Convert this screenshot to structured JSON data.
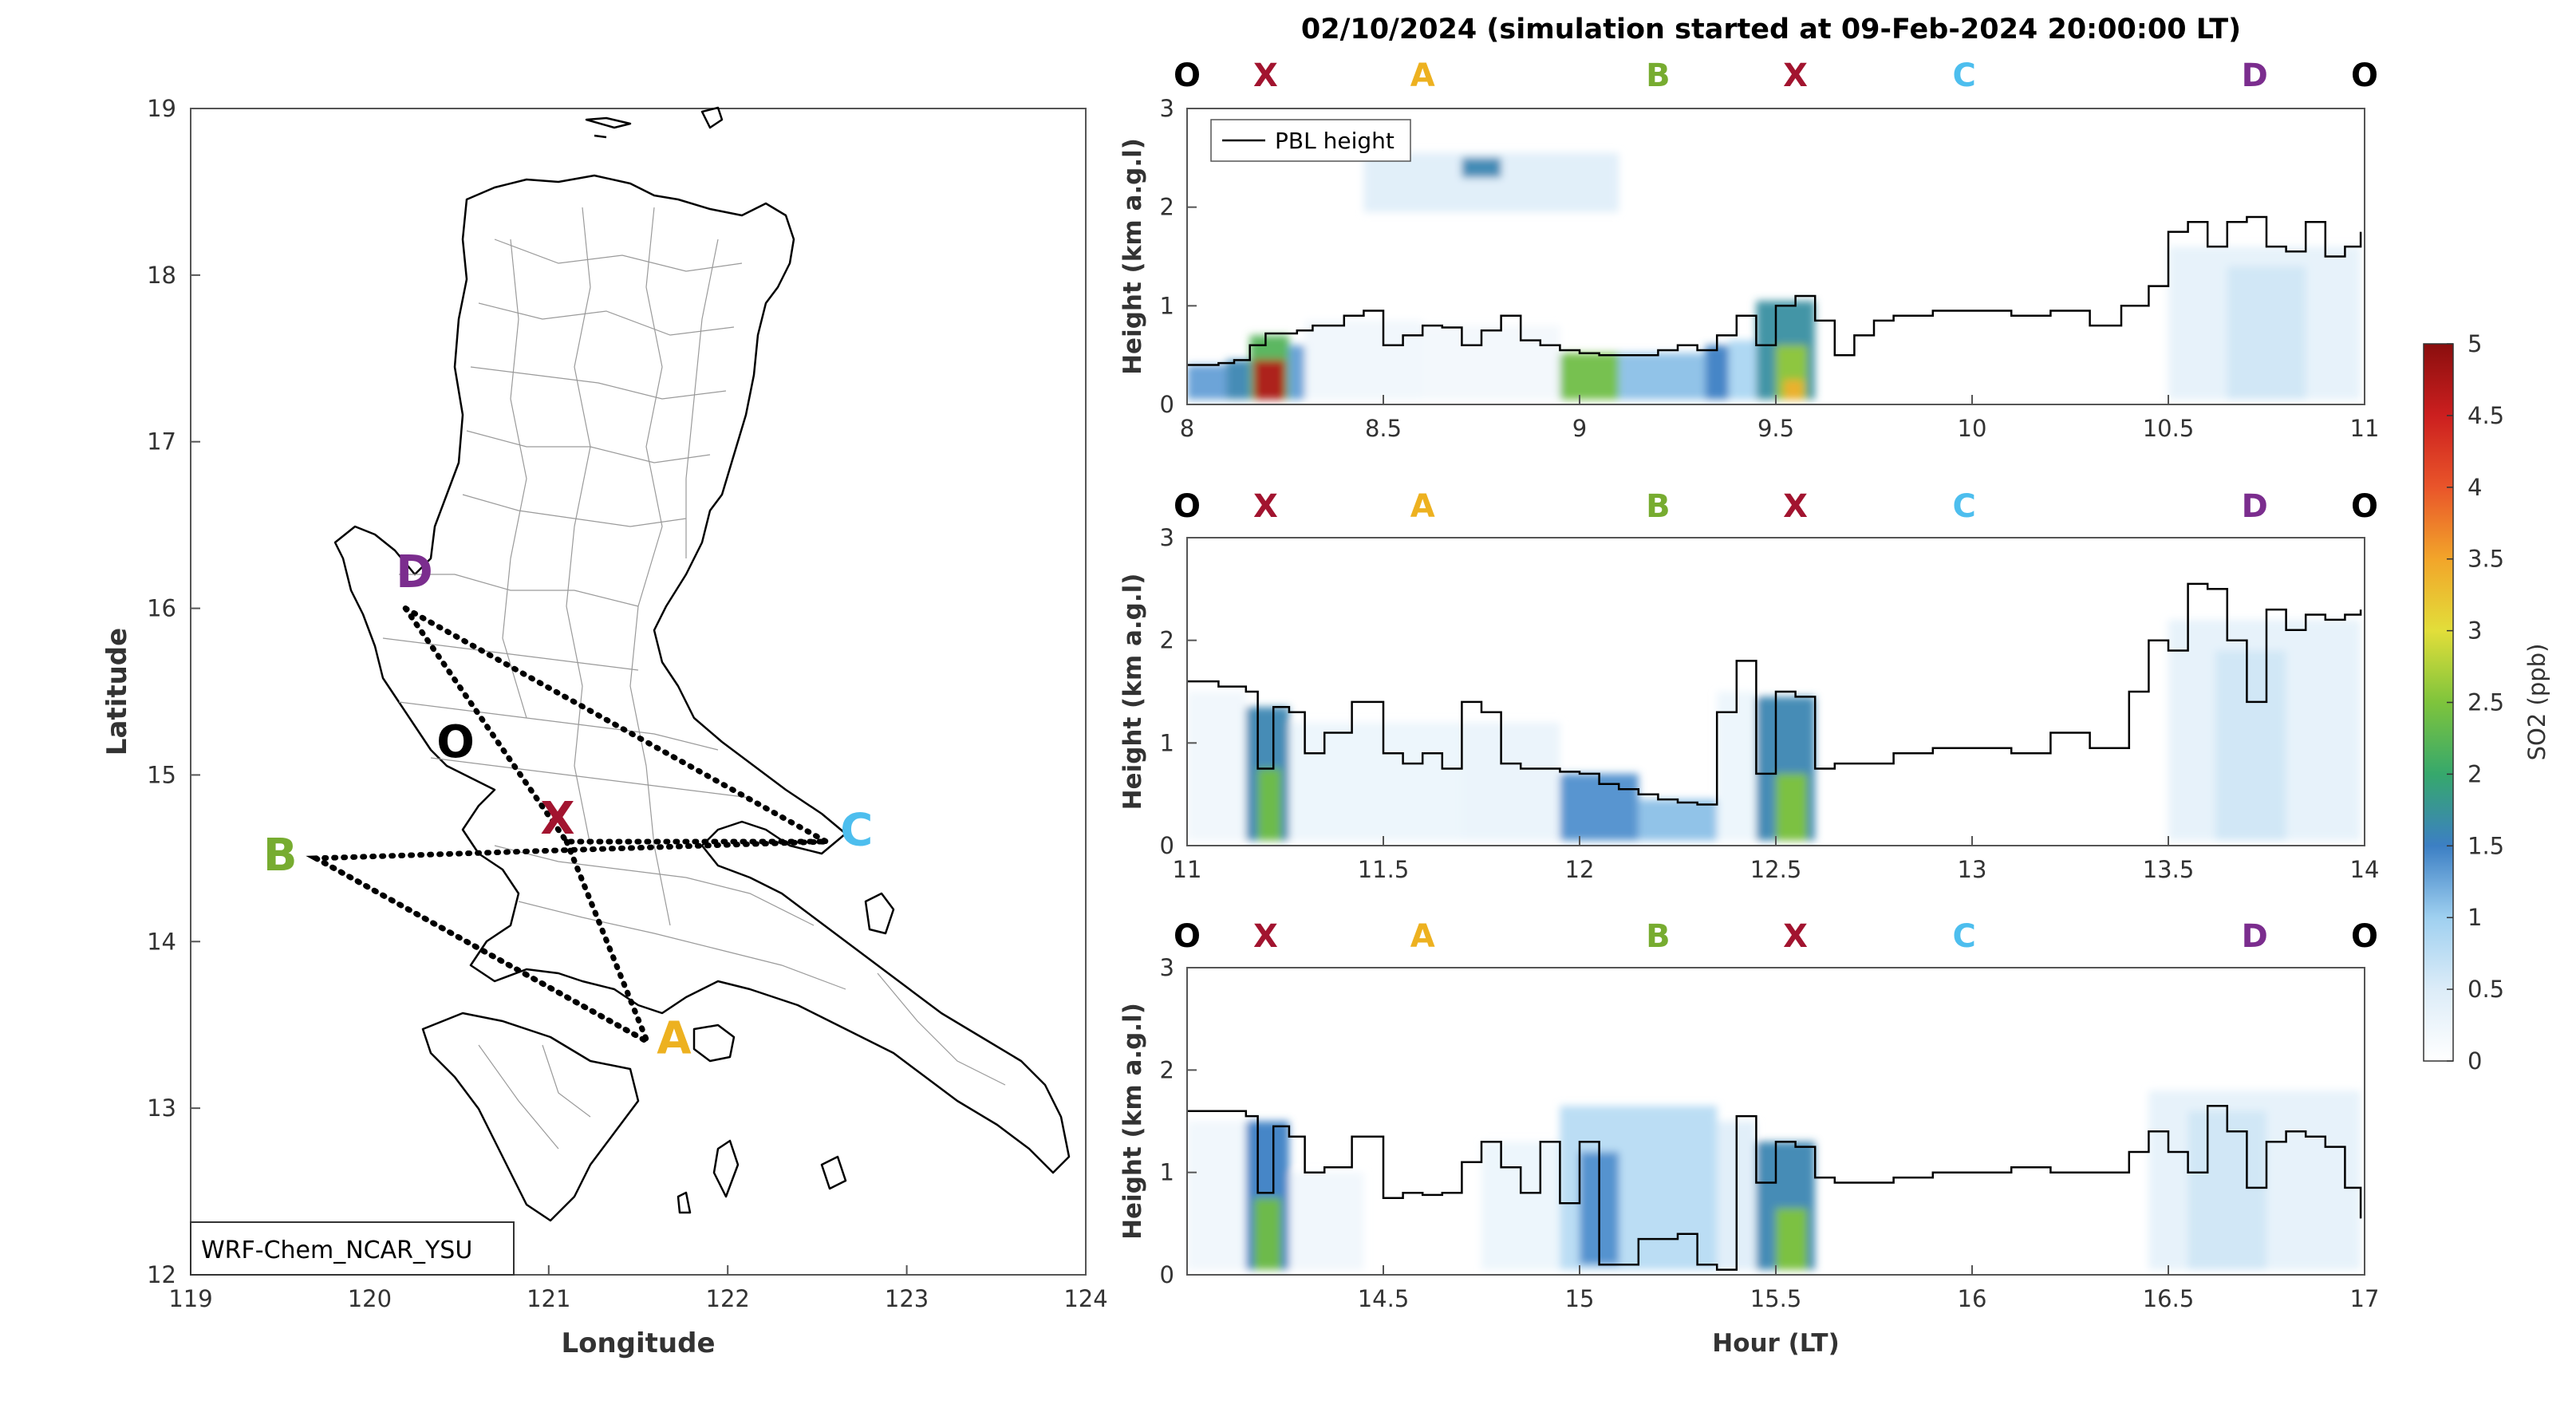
{
  "figure_title": "02/10/2024 (simulation started at 09-Feb-2024 20:00:00 LT)",
  "map": {
    "xlabel": "Longitude",
    "ylabel": "Latitude",
    "xticks": [
      "119",
      "120",
      "121",
      "122",
      "123",
      "124"
    ],
    "yticks": [
      "12",
      "13",
      "14",
      "15",
      "16",
      "17",
      "18",
      "19"
    ],
    "model_label": "WRF-Chem_NCAR_YSU",
    "markers": [
      {
        "id": "D",
        "label": "D",
        "lon": 120.25,
        "lat": 16.2,
        "color": "#7b2d8e"
      },
      {
        "id": "O",
        "label": "O",
        "lon": 120.48,
        "lat": 15.18,
        "color": "#000000"
      },
      {
        "id": "X",
        "label": "X",
        "lon": 121.05,
        "lat": 14.72,
        "color": "#a2142f"
      },
      {
        "id": "B",
        "label": "B",
        "lon": 119.5,
        "lat": 14.5,
        "color": "#77ac30"
      },
      {
        "id": "C",
        "label": "C",
        "lon": 122.72,
        "lat": 14.65,
        "color": "#4dbeee"
      },
      {
        "id": "A",
        "label": "A",
        "lon": 121.7,
        "lat": 13.4,
        "color": "#edb120"
      }
    ],
    "route_points": [
      {
        "lon": 120.2,
        "lat": 16.0
      },
      {
        "lon": 121.1,
        "lat": 14.6
      },
      {
        "lon": 122.55,
        "lat": 14.6
      },
      {
        "lon": 119.7,
        "lat": 14.5
      },
      {
        "lon": 121.55,
        "lat": 13.4
      }
    ]
  },
  "colorbar": {
    "label": "SO2 (ppb)",
    "ticks": [
      "0",
      "0.5",
      "1",
      "1.5",
      "2",
      "2.5",
      "3",
      "3.5",
      "4",
      "4.5",
      "5"
    ],
    "min": 0,
    "max": 5
  },
  "chart_data": [
    {
      "type": "heatmap",
      "xlim": [
        8,
        11
      ],
      "ylim": [
        0,
        3
      ],
      "xticks": [
        "8",
        "8.5",
        "9",
        "9.5",
        "10",
        "10.5",
        "11"
      ],
      "yticks": [
        "0",
        "1",
        "2",
        "3"
      ],
      "ylabel": "Height (km a.g.l)",
      "xlabel": "",
      "legend": [
        "PBL height"
      ],
      "legend_position": "top-left",
      "site_labels": [
        {
          "label": "O",
          "x": 8.0,
          "color": "#000000"
        },
        {
          "label": "X",
          "x": 8.2,
          "color": "#a2142f"
        },
        {
          "label": "A",
          "x": 8.6,
          "color": "#edb120"
        },
        {
          "label": "B",
          "x": 9.2,
          "color": "#77ac30"
        },
        {
          "label": "X",
          "x": 9.55,
          "color": "#a2142f"
        },
        {
          "label": "C",
          "x": 9.98,
          "color": "#4dbeee"
        },
        {
          "label": "D",
          "x": 10.72,
          "color": "#7b2d8e"
        },
        {
          "label": "O",
          "x": 11.0,
          "color": "#000000"
        }
      ],
      "series": [
        {
          "name": "PBL height",
          "x": [
            8.0,
            8.08,
            8.12,
            8.16,
            8.2,
            8.24,
            8.28,
            8.32,
            8.4,
            8.45,
            8.5,
            8.55,
            8.6,
            8.65,
            8.7,
            8.75,
            8.8,
            8.85,
            8.9,
            8.95,
            9.0,
            9.05,
            9.1,
            9.15,
            9.2,
            9.25,
            9.3,
            9.35,
            9.4,
            9.45,
            9.5,
            9.55,
            9.6,
            9.65,
            9.7,
            9.75,
            9.8,
            9.9,
            10.0,
            10.1,
            10.2,
            10.3,
            10.38,
            10.45,
            10.5,
            10.55,
            10.6,
            10.65,
            10.7,
            10.75,
            10.8,
            10.85,
            10.9,
            10.95,
            10.99
          ],
          "y": [
            0.4,
            0.42,
            0.45,
            0.6,
            0.72,
            0.72,
            0.75,
            0.8,
            0.9,
            0.95,
            0.6,
            0.7,
            0.8,
            0.78,
            0.6,
            0.75,
            0.9,
            0.65,
            0.6,
            0.55,
            0.52,
            0.5,
            0.5,
            0.5,
            0.55,
            0.6,
            0.55,
            0.7,
            0.9,
            0.6,
            1.0,
            1.1,
            0.85,
            0.5,
            0.7,
            0.85,
            0.9,
            0.95,
            0.95,
            0.9,
            0.95,
            0.8,
            1.0,
            1.2,
            1.75,
            1.85,
            1.6,
            1.85,
            1.9,
            1.6,
            1.55,
            1.85,
            1.5,
            1.6,
            1.75
          ]
        },
        {
          "name": "SO2",
          "blobs": [
            {
              "x0": 8.0,
              "x1": 8.1,
              "y0": 0.05,
              "y1": 0.4,
              "v": 1.3
            },
            {
              "x0": 8.1,
              "x1": 8.16,
              "y0": 0.05,
              "y1": 0.45,
              "v": 1.6
            },
            {
              "x0": 8.16,
              "x1": 8.26,
              "y0": 0.05,
              "y1": 0.7,
              "v": 2.2
            },
            {
              "x0": 8.17,
              "x1": 8.25,
              "y0": 0.05,
              "y1": 0.45,
              "v": 4.7
            },
            {
              "x0": 8.26,
              "x1": 8.3,
              "y0": 0.05,
              "y1": 0.6,
              "v": 1.3
            },
            {
              "x0": 8.3,
              "x1": 8.6,
              "y0": 0.05,
              "y1": 0.85,
              "v": 0.25
            },
            {
              "x0": 8.6,
              "x1": 8.95,
              "y0": 0.05,
              "y1": 0.8,
              "v": 0.2
            },
            {
              "x0": 8.95,
              "x1": 9.1,
              "y0": 0.05,
              "y1": 0.52,
              "v": 2.4
            },
            {
              "x0": 9.1,
              "x1": 9.32,
              "y0": 0.05,
              "y1": 0.52,
              "v": 1.1
            },
            {
              "x0": 9.32,
              "x1": 9.38,
              "y0": 0.05,
              "y1": 0.6,
              "v": 1.5
            },
            {
              "x0": 9.38,
              "x1": 9.45,
              "y0": 0.05,
              "y1": 0.65,
              "v": 0.9
            },
            {
              "x0": 9.45,
              "x1": 9.6,
              "y0": 0.05,
              "y1": 1.05,
              "v": 1.7
            },
            {
              "x0": 9.5,
              "x1": 9.58,
              "y0": 0.05,
              "y1": 0.6,
              "v": 2.6
            },
            {
              "x0": 9.52,
              "x1": 9.57,
              "y0": 0.05,
              "y1": 0.25,
              "v": 3.4
            },
            {
              "x0": 8.45,
              "x1": 9.1,
              "y0": 1.95,
              "y1": 2.55,
              "v": 0.5
            },
            {
              "x0": 8.7,
              "x1": 8.8,
              "y0": 2.3,
              "y1": 2.5,
              "v": 1.6
            },
            {
              "x0": 10.5,
              "x1": 10.99,
              "y0": 0.05,
              "y1": 1.6,
              "v": 0.4
            },
            {
              "x0": 10.65,
              "x1": 10.85,
              "y0": 0.05,
              "y1": 1.4,
              "v": 0.6
            }
          ]
        }
      ]
    },
    {
      "type": "heatmap",
      "xlim": [
        11,
        14
      ],
      "ylim": [
        0,
        3
      ],
      "xticks": [
        "11",
        "11.5",
        "12",
        "12.5",
        "13",
        "13.5",
        "14"
      ],
      "yticks": [
        "0",
        "1",
        "2",
        "3"
      ],
      "ylabel": "Height (km a.g.l)",
      "xlabel": "",
      "site_labels": [
        {
          "label": "O",
          "x": 11.0,
          "color": "#000000"
        },
        {
          "label": "X",
          "x": 11.2,
          "color": "#a2142f"
        },
        {
          "label": "A",
          "x": 11.6,
          "color": "#edb120"
        },
        {
          "label": "B",
          "x": 12.2,
          "color": "#77ac30"
        },
        {
          "label": "X",
          "x": 12.55,
          "color": "#a2142f"
        },
        {
          "label": "C",
          "x": 12.98,
          "color": "#4dbeee"
        },
        {
          "label": "D",
          "x": 13.72,
          "color": "#7b2d8e"
        },
        {
          "label": "O",
          "x": 14.0,
          "color": "#000000"
        }
      ],
      "series": [
        {
          "name": "PBL height",
          "x": [
            11.0,
            11.08,
            11.15,
            11.18,
            11.22,
            11.26,
            11.3,
            11.35,
            11.42,
            11.5,
            11.55,
            11.6,
            11.65,
            11.7,
            11.75,
            11.8,
            11.85,
            11.9,
            11.95,
            12.0,
            12.05,
            12.1,
            12.15,
            12.2,
            12.25,
            12.3,
            12.35,
            12.4,
            12.45,
            12.5,
            12.55,
            12.6,
            12.65,
            12.7,
            12.8,
            12.9,
            13.0,
            13.1,
            13.2,
            13.3,
            13.4,
            13.45,
            13.5,
            13.55,
            13.6,
            13.65,
            13.7,
            13.75,
            13.8,
            13.85,
            13.9,
            13.95,
            13.99
          ],
          "y": [
            1.6,
            1.55,
            1.5,
            0.75,
            1.35,
            1.3,
            0.9,
            1.1,
            1.4,
            0.9,
            0.8,
            0.9,
            0.75,
            1.4,
            1.3,
            0.8,
            0.75,
            0.75,
            0.72,
            0.7,
            0.6,
            0.55,
            0.5,
            0.45,
            0.42,
            0.4,
            1.3,
            1.8,
            0.7,
            1.5,
            1.45,
            0.75,
            0.8,
            0.8,
            0.9,
            0.95,
            0.95,
            0.9,
            1.1,
            0.95,
            1.5,
            2.0,
            1.9,
            2.55,
            2.5,
            2.0,
            1.4,
            2.3,
            2.1,
            2.25,
            2.2,
            2.25,
            2.3
          ]
        },
        {
          "name": "SO2",
          "blobs": [
            {
              "x0": 11.0,
              "x1": 11.15,
              "y0": 0.05,
              "y1": 1.5,
              "v": 0.25
            },
            {
              "x0": 11.15,
              "x1": 11.26,
              "y0": 0.05,
              "y1": 1.35,
              "v": 1.6
            },
            {
              "x0": 11.18,
              "x1": 11.24,
              "y0": 0.05,
              "y1": 0.75,
              "v": 2.4
            },
            {
              "x0": 11.26,
              "x1": 11.7,
              "y0": 0.05,
              "y1": 1.2,
              "v": 0.3
            },
            {
              "x0": 11.7,
              "x1": 11.95,
              "y0": 0.05,
              "y1": 1.2,
              "v": 0.35
            },
            {
              "x0": 11.95,
              "x1": 12.15,
              "y0": 0.05,
              "y1": 0.7,
              "v": 1.4
            },
            {
              "x0": 12.15,
              "x1": 12.35,
              "y0": 0.05,
              "y1": 0.45,
              "v": 1.1
            },
            {
              "x0": 12.35,
              "x1": 12.45,
              "y0": 0.05,
              "y1": 1.5,
              "v": 0.3
            },
            {
              "x0": 12.45,
              "x1": 12.6,
              "y0": 0.05,
              "y1": 1.45,
              "v": 1.6
            },
            {
              "x0": 12.5,
              "x1": 12.58,
              "y0": 0.05,
              "y1": 0.7,
              "v": 2.5
            },
            {
              "x0": 13.5,
              "x1": 13.99,
              "y0": 0.05,
              "y1": 2.2,
              "v": 0.4
            },
            {
              "x0": 13.62,
              "x1": 13.8,
              "y0": 0.05,
              "y1": 1.9,
              "v": 0.6
            }
          ]
        }
      ]
    },
    {
      "type": "heatmap",
      "xlim": [
        14,
        17
      ],
      "ylim": [
        0,
        3
      ],
      "xticks": [
        "14.5",
        "15",
        "15.5",
        "16",
        "16.5",
        "17"
      ],
      "yticks": [
        "0",
        "1",
        "2",
        "3"
      ],
      "ylabel": "Height (km a.g.l)",
      "xlabel": "Hour (LT)",
      "site_labels": [
        {
          "label": "O",
          "x": 14.0,
          "color": "#000000"
        },
        {
          "label": "X",
          "x": 14.2,
          "color": "#a2142f"
        },
        {
          "label": "A",
          "x": 14.6,
          "color": "#edb120"
        },
        {
          "label": "B",
          "x": 15.2,
          "color": "#77ac30"
        },
        {
          "label": "X",
          "x": 15.55,
          "color": "#a2142f"
        },
        {
          "label": "C",
          "x": 15.98,
          "color": "#4dbeee"
        },
        {
          "label": "D",
          "x": 16.72,
          "color": "#7b2d8e"
        },
        {
          "label": "O",
          "x": 17.0,
          "color": "#000000"
        }
      ],
      "series": [
        {
          "name": "PBL height",
          "x": [
            14.0,
            14.08,
            14.15,
            14.18,
            14.22,
            14.26,
            14.3,
            14.35,
            14.42,
            14.5,
            14.55,
            14.6,
            14.65,
            14.7,
            14.75,
            14.8,
            14.85,
            14.9,
            14.95,
            15.0,
            15.05,
            15.1,
            15.15,
            15.2,
            15.25,
            15.3,
            15.35,
            15.4,
            15.45,
            15.5,
            15.55,
            15.6,
            15.65,
            15.7,
            15.8,
            15.9,
            16.0,
            16.1,
            16.2,
            16.3,
            16.4,
            16.45,
            16.5,
            16.55,
            16.6,
            16.65,
            16.7,
            16.75,
            16.8,
            16.85,
            16.9,
            16.95,
            16.99
          ],
          "y": [
            1.6,
            1.6,
            1.55,
            0.8,
            1.45,
            1.35,
            1.0,
            1.05,
            1.35,
            0.75,
            0.8,
            0.78,
            0.8,
            1.1,
            1.3,
            1.05,
            0.8,
            1.3,
            0.7,
            1.3,
            0.1,
            0.1,
            0.35,
            0.35,
            0.4,
            0.1,
            0.05,
            1.55,
            0.9,
            1.3,
            1.25,
            0.95,
            0.9,
            0.9,
            0.95,
            1.0,
            1.0,
            1.05,
            1.0,
            1.0,
            1.2,
            1.4,
            1.2,
            1.0,
            1.65,
            1.4,
            0.85,
            1.3,
            1.4,
            1.35,
            1.25,
            0.85,
            0.55
          ]
        },
        {
          "name": "SO2",
          "blobs": [
            {
              "x0": 14.0,
              "x1": 14.15,
              "y0": 0.05,
              "y1": 1.5,
              "v": 0.25
            },
            {
              "x0": 14.15,
              "x1": 14.26,
              "y0": 0.05,
              "y1": 1.5,
              "v": 1.5
            },
            {
              "x0": 14.17,
              "x1": 14.24,
              "y0": 0.05,
              "y1": 0.75,
              "v": 2.4
            },
            {
              "x0": 14.26,
              "x1": 14.45,
              "y0": 0.05,
              "y1": 1.0,
              "v": 0.25
            },
            {
              "x0": 14.75,
              "x1": 14.95,
              "y0": 0.05,
              "y1": 1.3,
              "v": 0.3
            },
            {
              "x0": 14.95,
              "x1": 15.35,
              "y0": 0.05,
              "y1": 1.65,
              "v": 0.8
            },
            {
              "x0": 15.0,
              "x1": 15.1,
              "y0": 0.1,
              "y1": 1.2,
              "v": 1.4
            },
            {
              "x0": 15.35,
              "x1": 15.45,
              "y0": 0.05,
              "y1": 1.5,
              "v": 0.5
            },
            {
              "x0": 15.45,
              "x1": 15.6,
              "y0": 0.05,
              "y1": 1.3,
              "v": 1.6
            },
            {
              "x0": 15.5,
              "x1": 15.58,
              "y0": 0.05,
              "y1": 0.65,
              "v": 2.5
            },
            {
              "x0": 16.45,
              "x1": 16.99,
              "y0": 0.05,
              "y1": 1.8,
              "v": 0.4
            },
            {
              "x0": 16.55,
              "x1": 16.75,
              "y0": 0.05,
              "y1": 1.6,
              "v": 0.6
            }
          ]
        }
      ]
    }
  ]
}
